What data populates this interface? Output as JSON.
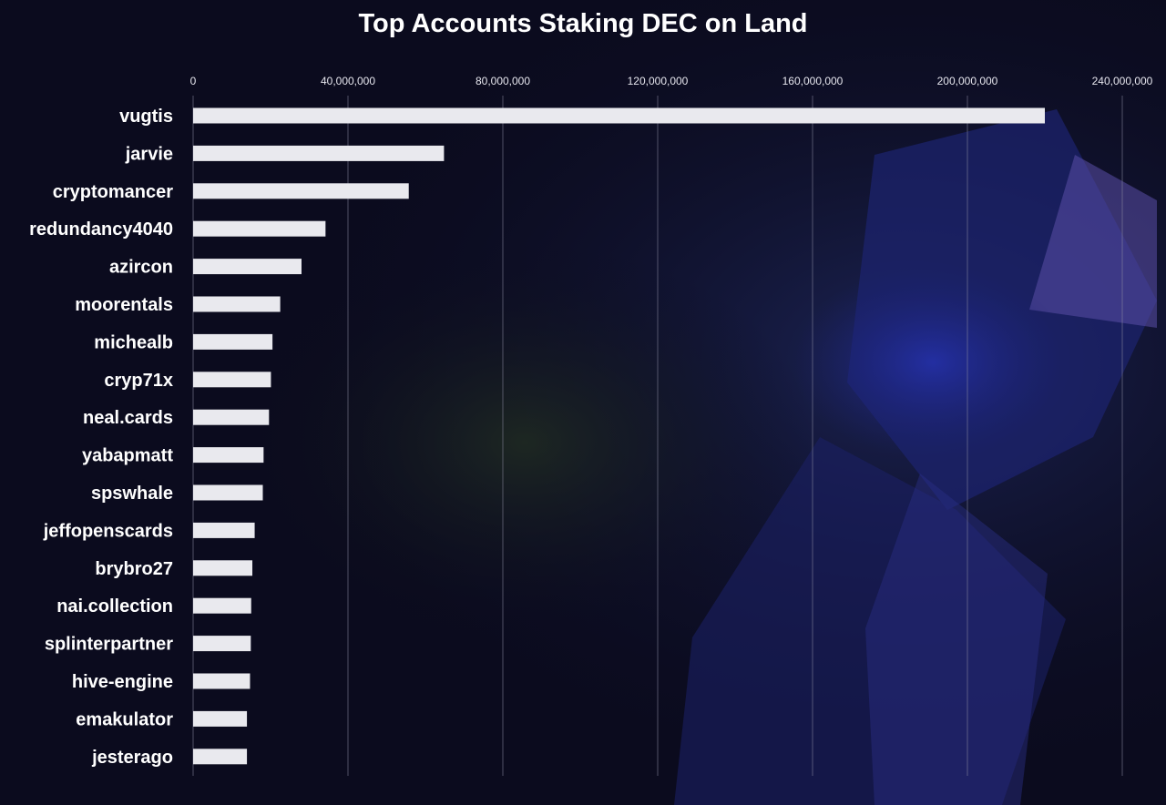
{
  "chart_data": {
    "type": "bar",
    "orientation": "horizontal",
    "title": "Top Accounts Staking DEC on Land",
    "xlabel": "",
    "ylabel": "",
    "xlim": [
      0,
      240000000
    ],
    "x_ticks": [
      0,
      40000000,
      80000000,
      120000000,
      160000000,
      200000000,
      240000000
    ],
    "x_tick_labels": [
      "0",
      "40,000,000",
      "80,000,000",
      "120,000,000",
      "160,000,000",
      "200,000,000",
      "240,000,000"
    ],
    "x_axis_position": "top",
    "grid": true,
    "bar_color": "#e9e9ee",
    "categories": [
      "vugtis",
      "jarvie",
      "cryptomancer",
      "redundancy4040",
      "azircon",
      "moorentals",
      "michealb",
      "cryp71x",
      "neal.cards",
      "yabapmatt",
      "spswhale",
      "jeffopenscards",
      "brybro27",
      "nai.collection",
      "splinterpartner",
      "hive-engine",
      "emakulator",
      "jesterago"
    ],
    "values": [
      220000000,
      64800000,
      55700000,
      34200000,
      28000000,
      22500000,
      20500000,
      20100000,
      19600000,
      18200000,
      18000000,
      15900000,
      15300000,
      15000000,
      14900000,
      14700000,
      13900000,
      13900000
    ]
  }
}
